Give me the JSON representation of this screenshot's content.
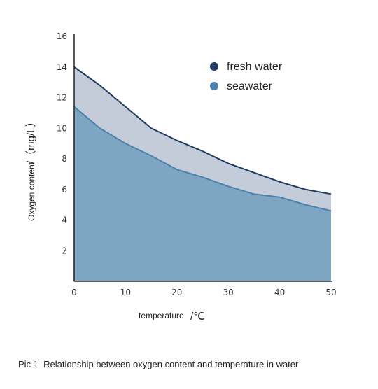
{
  "chart_data": {
    "type": "area",
    "caption": "Pic 1  Relationship between oxygen content and temperature in water",
    "ylabel_main": "Oxygen content",
    "ylabel_unit": "/（mg/L）",
    "xlabel_main": "temperature",
    "xlabel_unit": "/℃",
    "x_ticks": [
      0,
      10,
      20,
      30,
      40,
      50
    ],
    "y_ticks": [
      2,
      4,
      6,
      8,
      10,
      12,
      14,
      16
    ],
    "xlim": [
      0,
      50
    ],
    "ylim": [
      0,
      16
    ],
    "legend_position": "top-right",
    "series": [
      {
        "name": "fresh water",
        "color": "#1f3a63",
        "fill": "#c3ccd8",
        "x": [
          0,
          5,
          10,
          15,
          20,
          25,
          30,
          35,
          40,
          45,
          50
        ],
        "values": [
          14.0,
          12.8,
          11.4,
          10.0,
          9.2,
          8.5,
          7.7,
          7.1,
          6.5,
          6.0,
          5.7
        ]
      },
      {
        "name": "seawater",
        "color": "#4a82ad",
        "fill": "#7ea6c3",
        "x": [
          0,
          5,
          10,
          15,
          20,
          25,
          30,
          35,
          40,
          45,
          50
        ],
        "values": [
          11.4,
          10.0,
          9.0,
          8.2,
          7.3,
          6.8,
          6.2,
          5.7,
          5.5,
          5.0,
          4.6
        ]
      }
    ]
  }
}
